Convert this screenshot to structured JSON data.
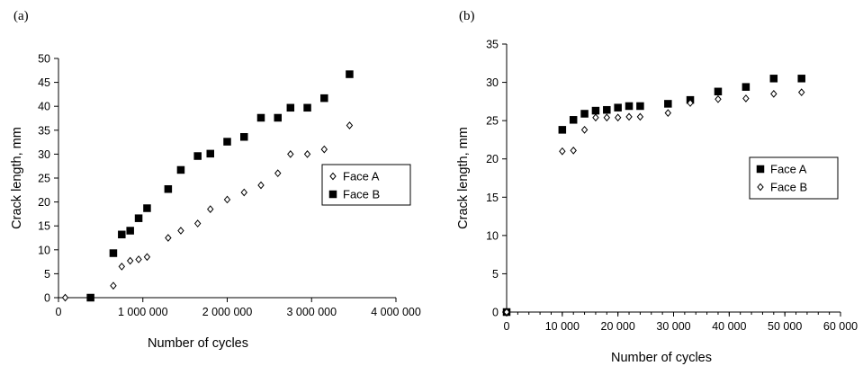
{
  "chart_data": [
    {
      "type": "scatter",
      "panel_label": "(a)",
      "title": "",
      "xlabel": "Number of cycles",
      "ylabel": "Crack length, mm",
      "xlim": [
        0,
        4000000
      ],
      "ylim": [
        0,
        50
      ],
      "xticks": [
        0,
        1000000,
        2000000,
        3000000,
        4000000
      ],
      "xtick_labels": [
        "0",
        "1 000 000",
        "2 000 000",
        "3 000 000",
        "4 000 000"
      ],
      "yticks": [
        0,
        5,
        10,
        15,
        20,
        25,
        30,
        35,
        40,
        45,
        50
      ],
      "ytick_labels": [
        "0",
        "5",
        "10",
        "15",
        "20",
        "25",
        "30",
        "35",
        "40",
        "45",
        "50"
      ],
      "grid": false,
      "legend_position": "right",
      "series": [
        {
          "name": "Face A",
          "marker": "open-diamond",
          "x": [
            80000,
            650000,
            750000,
            850000,
            950000,
            1050000,
            1300000,
            1450000,
            1650000,
            1800000,
            2000000,
            2200000,
            2400000,
            2600000,
            2750000,
            2950000,
            3150000,
            3450000
          ],
          "y": [
            0,
            2.5,
            6.5,
            7.7,
            8,
            8.5,
            12.5,
            14,
            15.5,
            18.5,
            20.5,
            22,
            23.5,
            26,
            30,
            30,
            31,
            36
          ]
        },
        {
          "name": "Face B",
          "marker": "filled-square",
          "x": [
            380000,
            650000,
            750000,
            850000,
            950000,
            1050000,
            1300000,
            1450000,
            1650000,
            1800000,
            2000000,
            2200000,
            2400000,
            2600000,
            2750000,
            2950000,
            3150000,
            3450000
          ],
          "y": [
            0,
            9.3,
            13.2,
            14,
            16.6,
            18.7,
            22.7,
            26.7,
            29.6,
            30.1,
            32.6,
            33.6,
            37.6,
            37.6,
            39.7,
            39.7,
            41.7,
            46.7
          ]
        }
      ]
    },
    {
      "type": "scatter",
      "panel_label": "(b)",
      "title": "",
      "xlabel": "Number of cycles",
      "ylabel": "Crack length, mm",
      "xlim": [
        0,
        60000
      ],
      "ylim": [
        0,
        35
      ],
      "xticks": [
        0,
        10000,
        20000,
        30000,
        40000,
        50000,
        60000
      ],
      "xtick_labels": [
        "0",
        "10 000",
        "20 000",
        "30 000",
        "40 000",
        "50 000",
        "60 000"
      ],
      "yticks": [
        0,
        5,
        10,
        15,
        20,
        25,
        30,
        35
      ],
      "ytick_labels": [
        "0",
        "5",
        "10",
        "15",
        "20",
        "25",
        "30",
        "35"
      ],
      "grid": false,
      "legend_position": "right",
      "series": [
        {
          "name": "Face A",
          "marker": "filled-square",
          "x": [
            0,
            10000,
            12000,
            14000,
            16000,
            18000,
            20000,
            22000,
            24000,
            29000,
            33000,
            38000,
            43000,
            48000,
            53000
          ],
          "y": [
            0,
            23.8,
            25.1,
            25.9,
            26.3,
            26.4,
            26.7,
            26.9,
            26.9,
            27.2,
            27.7,
            28.8,
            29.4,
            30.5,
            30.5
          ]
        },
        {
          "name": "Face B",
          "marker": "open-diamond",
          "x": [
            0,
            10000,
            12000,
            14000,
            16000,
            18000,
            20000,
            22000,
            24000,
            29000,
            33000,
            38000,
            43000,
            48000,
            53000
          ],
          "y": [
            0,
            21,
            21.1,
            23.8,
            25.4,
            25.4,
            25.4,
            25.5,
            25.5,
            26,
            27.3,
            27.8,
            27.9,
            28.5,
            28.7
          ]
        }
      ]
    }
  ]
}
